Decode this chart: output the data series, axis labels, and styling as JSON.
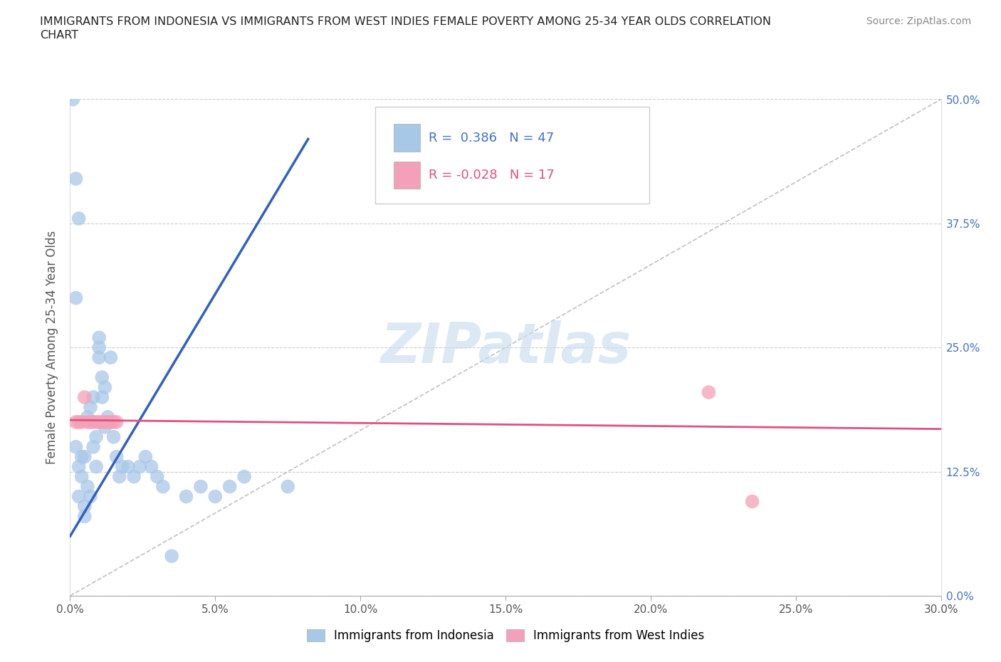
{
  "title_line1": "IMMIGRANTS FROM INDONESIA VS IMMIGRANTS FROM WEST INDIES FEMALE POVERTY AMONG 25-34 YEAR OLDS CORRELATION",
  "title_line2": "CHART",
  "source": "Source: ZipAtlas.com",
  "ylabel_label": "Female Poverty Among 25-34 Year Olds",
  "xlim": [
    0.0,
    0.3
  ],
  "ylim": [
    0.0,
    0.5
  ],
  "x_tick_vals": [
    0.0,
    0.05,
    0.1,
    0.15,
    0.2,
    0.25,
    0.3
  ],
  "y_tick_vals": [
    0.0,
    0.125,
    0.25,
    0.375,
    0.5
  ],
  "r_indonesia": 0.386,
  "n_indonesia": 47,
  "r_west_indies": -0.028,
  "n_west_indies": 17,
  "color_indonesia": "#a8c8e8",
  "color_west_indies": "#f4a0b8",
  "line_color_indonesia": "#3060c0",
  "line_color_west_indies": "#e05080",
  "diagonal_color": "#c0c0c0",
  "watermark": "ZIPatlas",
  "legend_label_indonesia": "Immigrants from Indonesia",
  "legend_label_west_indies": "Immigrants from West Indies",
  "indonesia_x": [
    0.001,
    0.002,
    0.002,
    0.003,
    0.003,
    0.004,
    0.004,
    0.005,
    0.005,
    0.005,
    0.006,
    0.006,
    0.007,
    0.007,
    0.008,
    0.008,
    0.009,
    0.009,
    0.01,
    0.01,
    0.011,
    0.011,
    0.012,
    0.012,
    0.013,
    0.014,
    0.015,
    0.016,
    0.017,
    0.018,
    0.02,
    0.022,
    0.024,
    0.026,
    0.028,
    0.03,
    0.032,
    0.035,
    0.04,
    0.045,
    0.05,
    0.055,
    0.06,
    0.075,
    0.01,
    0.003,
    0.002
  ],
  "indonesia_y": [
    0.5,
    0.42,
    0.15,
    0.13,
    0.1,
    0.14,
    0.12,
    0.09,
    0.08,
    0.14,
    0.11,
    0.18,
    0.1,
    0.19,
    0.15,
    0.2,
    0.13,
    0.16,
    0.24,
    0.25,
    0.2,
    0.22,
    0.21,
    0.17,
    0.18,
    0.24,
    0.16,
    0.14,
    0.12,
    0.13,
    0.13,
    0.12,
    0.13,
    0.14,
    0.13,
    0.12,
    0.11,
    0.04,
    0.1,
    0.11,
    0.1,
    0.11,
    0.12,
    0.11,
    0.26,
    0.38,
    0.3
  ],
  "west_indies_x": [
    0.002,
    0.003,
    0.004,
    0.005,
    0.006,
    0.007,
    0.008,
    0.009,
    0.01,
    0.011,
    0.012,
    0.013,
    0.014,
    0.015,
    0.016,
    0.22,
    0.235
  ],
  "west_indies_y": [
    0.175,
    0.175,
    0.175,
    0.2,
    0.175,
    0.175,
    0.175,
    0.175,
    0.175,
    0.175,
    0.175,
    0.175,
    0.175,
    0.175,
    0.175,
    0.205,
    0.095
  ],
  "blue_line_x": [
    0.0,
    0.082
  ],
  "blue_line_y": [
    0.06,
    0.46
  ],
  "pink_line_x": [
    0.0,
    0.3
  ],
  "pink_line_y": [
    0.177,
    0.168
  ]
}
